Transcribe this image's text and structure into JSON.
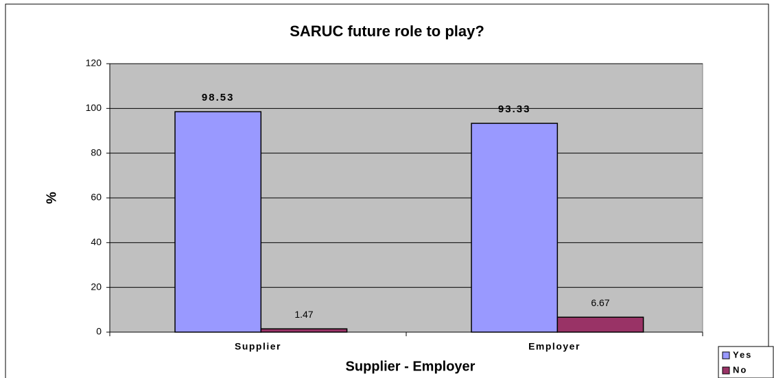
{
  "chart_data": {
    "type": "bar",
    "title": "SARUC future role to play?",
    "x_label": "Supplier - Employer",
    "y_label": "%",
    "categories": [
      "Supplier",
      "Employer"
    ],
    "series": [
      {
        "name": "Yes",
        "color": "#9999ff",
        "values": [
          98.53,
          93.33
        ]
      },
      {
        "name": "No",
        "color": "#993366",
        "values": [
          1.47,
          6.67
        ]
      }
    ],
    "ylim": [
      0,
      120
    ],
    "yticks": [
      0,
      20,
      40,
      60,
      80,
      100,
      120
    ],
    "grid": true,
    "legend": "bottom-right",
    "plot_background": "#c0c0c0"
  }
}
